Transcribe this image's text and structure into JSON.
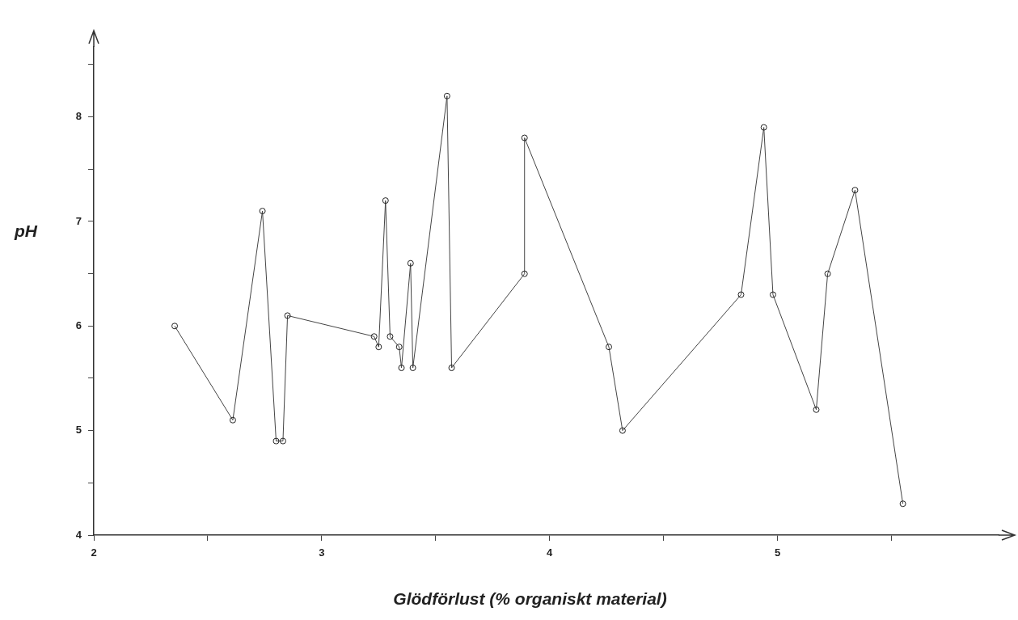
{
  "chart_data": {
    "type": "line",
    "xlabel": "Glödförlust (% organiskt material)",
    "ylabel": "pH",
    "xlim": [
      2,
      5.97
    ],
    "ylim": [
      4,
      8.67
    ],
    "xticks": [
      2,
      {
        "value": 2.5,
        "label": null
      },
      3,
      {
        "value": 3.5,
        "label": null
      },
      4,
      {
        "value": 4.5,
        "label": null
      },
      5,
      {
        "value": 5.5,
        "label": null
      }
    ],
    "yticks": [
      4,
      {
        "value": 4.5,
        "label": null
      },
      5,
      {
        "value": 5.5,
        "label": null
      },
      6,
      {
        "value": 6.5,
        "label": null
      },
      7,
      {
        "value": 7.5,
        "label": null
      },
      8,
      {
        "value": 8.5,
        "label": null
      }
    ],
    "series": [
      {
        "color": "#444444",
        "x": [
          2.355,
          2.61,
          2.74,
          2.8,
          2.83,
          2.85,
          3.23,
          3.25,
          3.28,
          3.3,
          3.34,
          3.35,
          3.39,
          3.4,
          3.55,
          3.57,
          3.89,
          3.89,
          4.26,
          4.32,
          4.84,
          4.94,
          4.98,
          5.17,
          5.22,
          5.34,
          5.55
        ],
        "values": [
          6.0,
          5.1,
          7.1,
          4.9,
          4.9,
          6.1,
          5.9,
          5.8,
          7.2,
          5.9,
          5.8,
          5.6,
          6.6,
          5.6,
          8.2,
          5.6,
          6.5,
          7.8,
          5.8,
          5.0,
          6.3,
          7.9,
          6.3,
          5.2,
          6.5,
          7.3,
          4.3
        ]
      }
    ],
    "marker": "circle",
    "line_style": "solid",
    "grid": false,
    "legend": false
  }
}
